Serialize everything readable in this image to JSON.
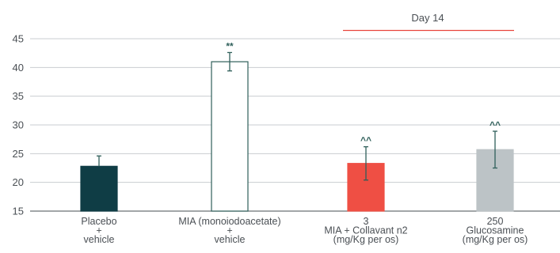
{
  "chart_data": {
    "type": "bar",
    "title": "",
    "xlabel": "",
    "ylabel": "",
    "ylim": [
      15,
      45
    ],
    "yticks": [
      15,
      20,
      25,
      30,
      35,
      40,
      45
    ],
    "grid": true,
    "period_label": "Day 14",
    "period_line_color": "#e8453c",
    "categories": [
      {
        "lines": [
          "Placebo",
          "+",
          "vehicle"
        ],
        "value": 22.8,
        "error": 1.8,
        "significance": "",
        "fill": "#0f3d45",
        "stroke": "#0f3d45"
      },
      {
        "lines": [
          "MIA (monoiodoacetate)",
          "+",
          "vehicle"
        ],
        "value": 41.0,
        "error": 1.6,
        "significance": "**",
        "fill": "#ffffff",
        "stroke": "#2f5f5a"
      },
      {
        "lines": [
          "3",
          "MIA + Collavant n2",
          "(mg/Kg per os)"
        ],
        "value": 23.3,
        "error": 2.9,
        "significance": "^^",
        "fill": "#ef4f44",
        "stroke": "#ef4f44"
      },
      {
        "lines": [
          "250",
          "Glucosamine",
          "(mg/Kg per os)"
        ],
        "value": 25.7,
        "error": 3.2,
        "significance": "^^",
        "fill": "#bcc3c6",
        "stroke": "#bcc3c6"
      }
    ],
    "colors": {
      "grid": "#c9cdd0",
      "axis": "#6b7075",
      "errorbar": "#2f5f5a"
    }
  }
}
